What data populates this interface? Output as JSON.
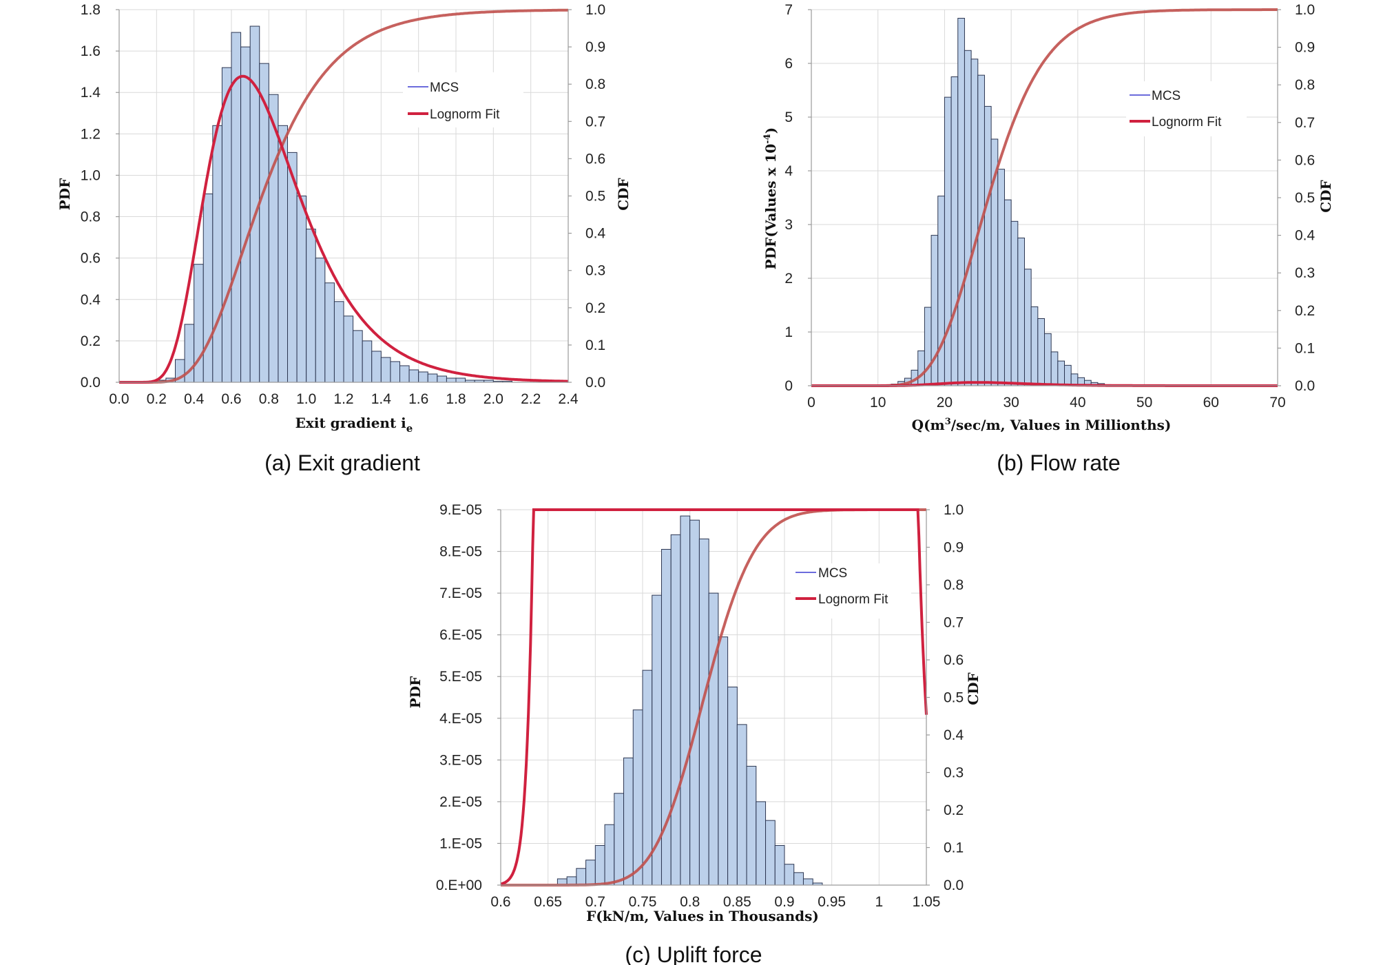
{
  "figure": {
    "colors": {
      "bar_fill": "#bcd0ea",
      "bar_edge": "#2b3550",
      "pdf_fit": "#d0213f",
      "cdf_fit": "#c0504d",
      "mcs_line": "#3a3ad0",
      "grid": "#d9d9d9"
    }
  },
  "chart_data": [
    {
      "id": "a",
      "type": "bar",
      "caption": "(a) Exit gradient",
      "xlabel_main": "Exit gradient i",
      "xlabel_sub": "e",
      "ylabel": "PDF",
      "y2label": "CDF",
      "x_ticks": [
        "0.0",
        "0.2",
        "0.4",
        "0.6",
        "0.8",
        "1.0",
        "1.2",
        "1.4",
        "1.6",
        "1.8",
        "2.0",
        "2.2",
        "2.4"
      ],
      "y_ticks": [
        "0.0",
        "0.2",
        "0.4",
        "0.6",
        "0.8",
        "1.0",
        "1.2",
        "1.4",
        "1.6",
        "1.8"
      ],
      "y2_ticks": [
        "0.0",
        "0.1",
        "0.2",
        "0.3",
        "0.4",
        "0.5",
        "0.6",
        "0.7",
        "0.8",
        "0.9",
        "1.0"
      ],
      "xlim": [
        0,
        2.4
      ],
      "ylim": [
        0,
        1.8
      ],
      "y2lim": [
        0,
        1
      ],
      "legend": [
        "MCS",
        "Lognorm Fit"
      ],
      "legend_position": "top-right",
      "bin_start": 0.1,
      "bin_width": 0.05,
      "values": [
        0,
        0,
        0.01,
        0.02,
        0.11,
        0.28,
        0.57,
        0.91,
        1.24,
        1.52,
        1.69,
        1.62,
        1.72,
        1.54,
        1.39,
        1.24,
        1.11,
        0.9,
        0.74,
        0.6,
        0.48,
        0.39,
        0.32,
        0.25,
        0.2,
        0.15,
        0.12,
        0.1,
        0.08,
        0.06,
        0.05,
        0.04,
        0.03,
        0.02,
        0.02,
        0.01,
        0.01,
        0.01,
        0.005,
        0.005
      ],
      "fit": {
        "dist": "lognormal",
        "mu": -0.27,
        "sigma": 0.38
      }
    },
    {
      "id": "b",
      "type": "bar",
      "caption": "(b) Flow rate",
      "xlabel_main": "Q(m",
      "xlabel_sup": "3",
      "xlabel_rest": "/sec/m, Values in Millionths)",
      "ylabel_main": "PDF(Values x 10",
      "ylabel_sup": "-4",
      "ylabel_end": ")",
      "y2label": "CDF",
      "x_ticks": [
        "0",
        "10",
        "20",
        "30",
        "40",
        "50",
        "60",
        "70"
      ],
      "y_ticks": [
        "0",
        "1",
        "2",
        "3",
        "4",
        "5",
        "6",
        "7"
      ],
      "y2_ticks": [
        "0.0",
        "0.1",
        "0.2",
        "0.3",
        "0.4",
        "0.5",
        "0.6",
        "0.7",
        "0.8",
        "0.9",
        "1.0"
      ],
      "xlim": [
        0,
        70
      ],
      "ylim": [
        0,
        7
      ],
      "y2lim": [
        0,
        1
      ],
      "legend": [
        "MCS",
        "Lognorm Fit"
      ],
      "legend_position": "top-right",
      "bin_start": 12,
      "bin_width": 1,
      "values": [
        0.03,
        0.08,
        0.14,
        0.29,
        0.65,
        1.46,
        2.8,
        3.53,
        5.37,
        5.75,
        6.84,
        6.24,
        6.08,
        5.78,
        5.2,
        4.59,
        4.03,
        3.46,
        3.06,
        2.75,
        2.17,
        1.47,
        1.25,
        0.97,
        0.63,
        0.46,
        0.38,
        0.22,
        0.15,
        0.1,
        0.06,
        0.04,
        0.02,
        0.01,
        0.01
      ],
      "fit": {
        "dist": "lognormal",
        "mu": 3.28,
        "sigma": 0.25
      }
    },
    {
      "id": "c",
      "type": "bar",
      "caption": "(c) Uplift force",
      "xlabel_main": "F(kN/m, Values in Thousands)",
      "ylabel": "PDF",
      "y2label": "CDF",
      "x_ticks": [
        "0.6",
        "0.65",
        "0.7",
        "0.75",
        "0.8",
        "0.85",
        "0.9",
        "0.95",
        "1",
        "1.05"
      ],
      "y_ticks": [
        "0.E+00",
        "1.E-05",
        "2.E-05",
        "3.E-05",
        "4.E-05",
        "5.E-05",
        "6.E-05",
        "7.E-05",
        "8.E-05",
        "9.E-05"
      ],
      "y2_ticks": [
        "0.0",
        "0.1",
        "0.2",
        "0.3",
        "0.4",
        "0.5",
        "0.6",
        "0.7",
        "0.8",
        "0.9",
        "1.0"
      ],
      "xlim": [
        0.6,
        1.05
      ],
      "ylim": [
        0,
        9e-05
      ],
      "y2lim": [
        0,
        1
      ],
      "legend": [
        "MCS",
        "Lognorm Fit"
      ],
      "legend_position": "top-right",
      "bin_start": 0.66,
      "bin_width": 0.01,
      "values": [
        1.5e-06,
        2e-06,
        4e-06,
        6e-06,
        9.5e-06,
        1.45e-05,
        2.2e-05,
        3.05e-05,
        4.2e-05,
        5.15e-05,
        6.95e-05,
        8.05e-05,
        8.4e-05,
        8.85e-05,
        8.75e-05,
        8.3e-05,
        7e-05,
        5.95e-05,
        4.75e-05,
        3.85e-05,
        2.85e-05,
        2e-05,
        1.55e-05,
        9.5e-06,
        5e-06,
        3e-06,
        1.5e-06,
        5e-07
      ],
      "fit": {
        "dist": "lognormal",
        "mu": -0.2046,
        "sigma": 0.0515
      }
    }
  ]
}
